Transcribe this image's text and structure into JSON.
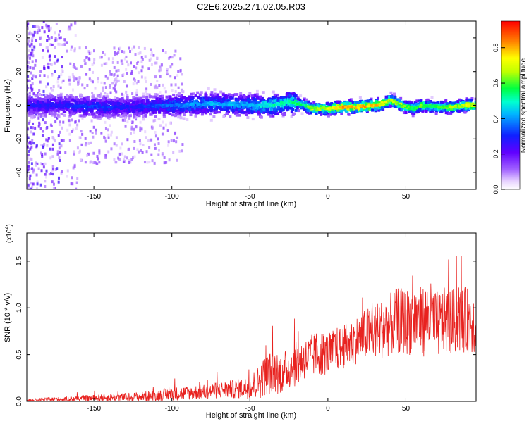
{
  "page": {
    "title": "C2E6.2025.271.02.05.R03"
  },
  "chart_data": [
    {
      "type": "heatmap",
      "title": "C2E6.2025.271.02.05.R03",
      "xlabel": "Height of straight line (km)",
      "ylabel": "Frequency (Hz)",
      "xlim": [
        -193,
        95
      ],
      "ylim": [
        -50,
        50
      ],
      "xticks": [
        -150,
        -100,
        -50,
        0,
        50
      ],
      "yticks": [
        -40,
        -20,
        0,
        20,
        40
      ],
      "colorbar": {
        "label": "Normalized spectral amplitude",
        "range": [
          0.0,
          0.95
        ],
        "ticks": [
          0.0,
          0.2,
          0.4,
          0.6,
          0.8
        ],
        "colormap": [
          "#ffffff",
          "#b070ff",
          "#7a00ff",
          "#2020ff",
          "#00c8ff",
          "#00ff80",
          "#ffff00",
          "#ff8000",
          "#ff0000"
        ]
      },
      "ridge": {
        "description_x": [
          -193,
          -175,
          -150,
          -125,
          -100,
          -75,
          -50,
          -35,
          -25,
          -15,
          -10,
          0,
          10,
          20,
          30,
          35,
          40,
          45,
          50,
          55,
          60,
          70,
          80,
          90,
          95
        ],
        "freq": [
          0,
          0,
          -1,
          -1,
          0,
          1,
          0,
          0,
          2,
          0,
          -2,
          -2,
          -1,
          -1,
          0,
          1,
          3,
          1,
          -1,
          -2,
          0,
          -1,
          -1,
          0,
          0
        ],
        "peak_amplitude": [
          0.3,
          0.3,
          0.35,
          0.3,
          0.4,
          0.45,
          0.45,
          0.55,
          0.55,
          0.6,
          0.7,
          0.75,
          0.85,
          0.85,
          0.85,
          0.75,
          0.7,
          0.7,
          0.65,
          0.6,
          0.65,
          0.6,
          0.7,
          0.75,
          0.7
        ]
      }
    },
    {
      "type": "line",
      "xlabel": "Height of straight line (km)",
      "ylabel": "SNR (10 * v/v)",
      "multiplier": "(x10",
      "multiplier_exp": "4",
      "multiplier_close": ")",
      "xlim": [
        -193,
        95
      ],
      "ylim": [
        0,
        1.8
      ],
      "xticks": [
        -150,
        -100,
        -50,
        0,
        50
      ],
      "yticks": [
        0.0,
        0.5,
        1.0,
        1.5
      ],
      "yticklabels": [
        "0.0",
        "0.5",
        "1.0",
        "1.5"
      ],
      "color": "#e8221f",
      "series": [
        {
          "x": [
            -193,
            -180,
            -160,
            -140,
            -120,
            -110,
            -100,
            -90,
            -80,
            -70,
            -60,
            -50,
            -45,
            -40,
            -35,
            -30,
            -25,
            -20,
            -15,
            -10,
            -5,
            0,
            5,
            10,
            15,
            20,
            25,
            30,
            35,
            40,
            45,
            50,
            55,
            60,
            65,
            70,
            75,
            80,
            85,
            90,
            95
          ],
          "y": [
            0.01,
            0.02,
            0.03,
            0.04,
            0.05,
            0.06,
            0.08,
            0.09,
            0.1,
            0.12,
            0.13,
            0.15,
            0.2,
            0.28,
            0.32,
            0.3,
            0.35,
            0.4,
            0.45,
            0.48,
            0.52,
            0.5,
            0.55,
            0.58,
            0.62,
            0.68,
            0.72,
            0.75,
            0.78,
            0.82,
            0.86,
            0.85,
            0.88,
            0.85,
            0.9,
            0.82,
            0.86,
            0.85,
            0.88,
            0.86,
            0.85
          ],
          "spread": [
            0.01,
            0.02,
            0.03,
            0.04,
            0.05,
            0.06,
            0.07,
            0.08,
            0.08,
            0.09,
            0.1,
            0.12,
            0.18,
            0.22,
            0.24,
            0.22,
            0.22,
            0.24,
            0.22,
            0.24,
            0.25,
            0.22,
            0.24,
            0.24,
            0.25,
            0.26,
            0.28,
            0.3,
            0.32,
            0.34,
            0.36,
            0.36,
            0.38,
            0.38,
            0.4,
            0.36,
            0.36,
            0.36,
            0.36,
            0.36,
            0.36
          ]
        }
      ]
    }
  ]
}
